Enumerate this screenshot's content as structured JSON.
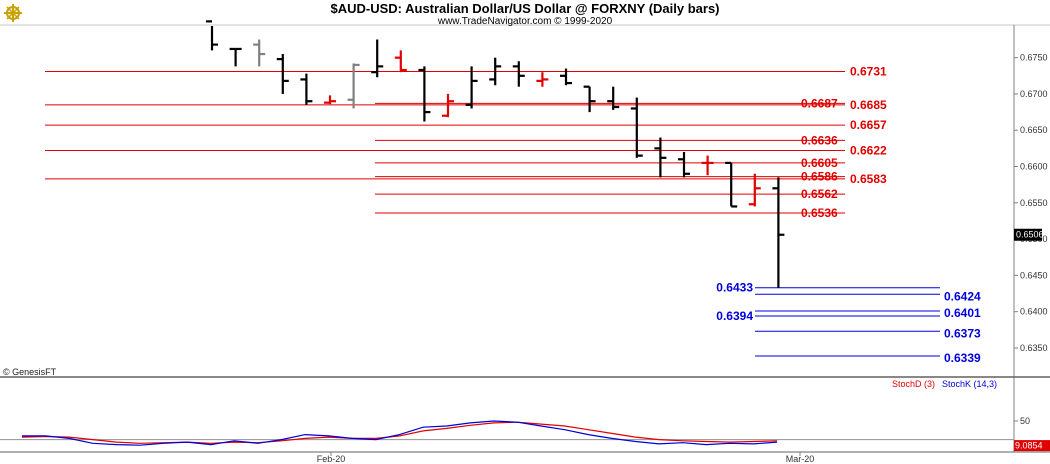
{
  "header": {
    "title": "$AUD-USD:  Australian Dollar/US Dollar @ FORXNY  (Daily bars)",
    "subtitle": "www.TradeNavigator.com © 1999-2020"
  },
  "copyright": "© GenesisFT",
  "colors": {
    "bars_black": "#000000",
    "bars_red": "#e00000",
    "bars_gray": "#808080",
    "resistance": "#e00000",
    "support": "#0000dd",
    "stoch_d": "#e00000",
    "stoch_k": "#0000dd"
  },
  "chart_data": [
    {
      "type": "ohlc",
      "ylim": [
        0.631,
        0.6795
      ],
      "yticks": [
        "0.6750",
        "0.6700",
        "0.6650",
        "0.6600",
        "0.6550",
        "0.6500",
        "0.6450",
        "0.6400",
        "0.6350"
      ],
      "xticks": [
        {
          "label": "Feb-20",
          "index": 5
        },
        {
          "label": "Mar-20",
          "index": 25
        }
      ],
      "last_price": "0.6506",
      "bars": [
        {
          "o": 0.68,
          "h": 0.68,
          "l": 0.676,
          "c": 0.6768,
          "color": "black"
        },
        {
          "o": 0.6762,
          "h": 0.6762,
          "l": 0.6738,
          "c": 0.6762,
          "color": "black"
        },
        {
          "o": 0.6768,
          "h": 0.6775,
          "l": 0.6738,
          "c": 0.6755,
          "color": "gray"
        },
        {
          "o": 0.6748,
          "h": 0.6755,
          "l": 0.67,
          "c": 0.6718,
          "color": "black"
        },
        {
          "o": 0.672,
          "h": 0.6728,
          "l": 0.6685,
          "c": 0.669,
          "color": "black"
        },
        {
          "o": 0.6688,
          "h": 0.6698,
          "l": 0.6686,
          "c": 0.669,
          "color": "red"
        },
        {
          "o": 0.6692,
          "h": 0.6742,
          "l": 0.668,
          "c": 0.674,
          "color": "gray"
        },
        {
          "o": 0.673,
          "h": 0.6775,
          "l": 0.6723,
          "c": 0.6738,
          "color": "black"
        },
        {
          "o": 0.675,
          "h": 0.676,
          "l": 0.673,
          "c": 0.6733,
          "color": "red"
        },
        {
          "o": 0.6733,
          "h": 0.6738,
          "l": 0.6662,
          "c": 0.6675,
          "color": "black"
        },
        {
          "o": 0.667,
          "h": 0.67,
          "l": 0.6668,
          "c": 0.669,
          "color": "red"
        },
        {
          "o": 0.6685,
          "h": 0.6738,
          "l": 0.668,
          "c": 0.6718,
          "color": "black"
        },
        {
          "o": 0.672,
          "h": 0.675,
          "l": 0.6712,
          "c": 0.6738,
          "color": "black"
        },
        {
          "o": 0.6738,
          "h": 0.6745,
          "l": 0.671,
          "c": 0.6725,
          "color": "black"
        },
        {
          "o": 0.6718,
          "h": 0.673,
          "l": 0.671,
          "c": 0.672,
          "color": "red"
        },
        {
          "o": 0.6725,
          "h": 0.6735,
          "l": 0.6712,
          "c": 0.6715,
          "color": "black"
        },
        {
          "o": 0.671,
          "h": 0.671,
          "l": 0.6675,
          "c": 0.669,
          "color": "black"
        },
        {
          "o": 0.669,
          "h": 0.671,
          "l": 0.6678,
          "c": 0.6682,
          "color": "black"
        },
        {
          "o": 0.668,
          "h": 0.6695,
          "l": 0.6612,
          "c": 0.6615,
          "color": "black"
        },
        {
          "o": 0.6625,
          "h": 0.664,
          "l": 0.6585,
          "c": 0.6612,
          "color": "black"
        },
        {
          "o": 0.661,
          "h": 0.662,
          "l": 0.6585,
          "c": 0.659,
          "color": "black"
        },
        {
          "o": 0.6605,
          "h": 0.6615,
          "l": 0.6588,
          "c": 0.6605,
          "color": "red"
        },
        {
          "o": 0.6605,
          "h": 0.6605,
          "l": 0.6545,
          "c": 0.6545,
          "color": "black"
        },
        {
          "o": 0.6548,
          "h": 0.659,
          "l": 0.6545,
          "c": 0.657,
          "color": "red"
        },
        {
          "o": 0.657,
          "h": 0.6585,
          "l": 0.6433,
          "c": 0.6506,
          "color": "black"
        }
      ],
      "resistance_levels": [
        {
          "value": 0.6731,
          "label": "0.6731",
          "from_index": 0
        },
        {
          "value": 0.6687,
          "label": "0.6687",
          "from_index": 8
        },
        {
          "value": 0.6685,
          "label": "0.6685",
          "from_index": 0
        },
        {
          "value": 0.6657,
          "label": "0.6657",
          "from_index": 0
        },
        {
          "value": 0.6636,
          "label": "0.6636",
          "from_index": 8
        },
        {
          "value": 0.6622,
          "label": "0.6622",
          "from_index": 0
        },
        {
          "value": 0.6605,
          "label": "0.6605",
          "from_index": 8
        },
        {
          "value": 0.6586,
          "label": "0.6586",
          "from_index": 8
        },
        {
          "value": 0.6583,
          "label": "0.6583",
          "from_index": 0
        },
        {
          "value": 0.6562,
          "label": "0.6562",
          "from_index": 8
        },
        {
          "value": 0.6536,
          "label": "0.6536",
          "from_index": 8
        }
      ],
      "support_levels": [
        {
          "value": 0.6433,
          "label": "0.6433",
          "side": "left"
        },
        {
          "value": 0.6424,
          "label": "0.6424",
          "side": "right"
        },
        {
          "value": 0.6401,
          "label": "0.6401",
          "side": "right"
        },
        {
          "value": 0.6394,
          "label": "0.6394",
          "side": "left"
        },
        {
          "value": 0.6373,
          "label": "0.6373",
          "side": "right"
        },
        {
          "value": 0.6339,
          "label": "0.6339",
          "side": "right"
        }
      ]
    },
    {
      "type": "line",
      "ylim": [
        0,
        100
      ],
      "yticks": [
        "50"
      ],
      "legend": [
        "StochD (3)",
        "StochK (14,3)"
      ],
      "last_value": "9.0854",
      "reference_levels": [
        20
      ],
      "series": [
        {
          "name": "StochD (3)",
          "color": "red",
          "values": [
            24,
            25,
            24,
            20,
            16,
            14,
            15,
            16,
            14,
            16,
            15,
            18,
            22,
            24,
            22,
            22,
            26,
            34,
            38,
            43,
            47,
            48,
            45,
            42,
            36,
            30,
            24,
            20,
            18,
            17,
            16,
            17,
            18
          ]
        },
        {
          "name": "StochK (14,3)",
          "color": "blue",
          "values": [
            26,
            26,
            22,
            14,
            12,
            11,
            14,
            16,
            12,
            18,
            14,
            20,
            28,
            26,
            22,
            20,
            28,
            40,
            42,
            47,
            50,
            48,
            42,
            36,
            28,
            22,
            17,
            13,
            15,
            12,
            14,
            13,
            16
          ]
        }
      ]
    }
  ]
}
